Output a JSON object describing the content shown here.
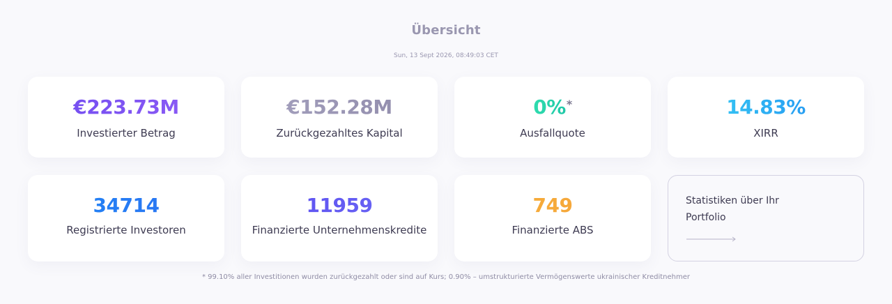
{
  "header": {
    "title": "Übersicht",
    "timestamp": "Sun, 13 Sept 2026, 08:49:03 CET"
  },
  "stats": [
    {
      "value": "€223.73M",
      "label": "Investierter Betrag",
      "color": "#7050f0"
    },
    {
      "value": "€152.28M",
      "label": "Zurückgezahltes Kapital",
      "color": "#9c98b6"
    },
    {
      "value": "0%",
      "asterisk": "*",
      "label": "Ausfallquote",
      "color": "#25d4ac"
    },
    {
      "value": "14.83%",
      "label": "XIRR",
      "color": "#2fb4f4"
    },
    {
      "value": "34714",
      "label": "Registrierte Investoren",
      "color": "#1e84f4"
    },
    {
      "value": "11959",
      "label": "Finanzierte Unternehmenskredite",
      "color": "#5e54f0"
    },
    {
      "value": "749",
      "label": "Finanzierte ABS",
      "color": "#f6aa3a"
    }
  ],
  "portfolio_link": {
    "text": "Statistiken über Ihr Portfolio",
    "icon": "arrow-right-icon"
  },
  "footnote": "* 99.10% aller Investitionen wurden zurückgezahlt oder sind auf Kurs; 0.90% – umstrukturierte Vermögenswerte ukrainischer Kreditnehmer"
}
